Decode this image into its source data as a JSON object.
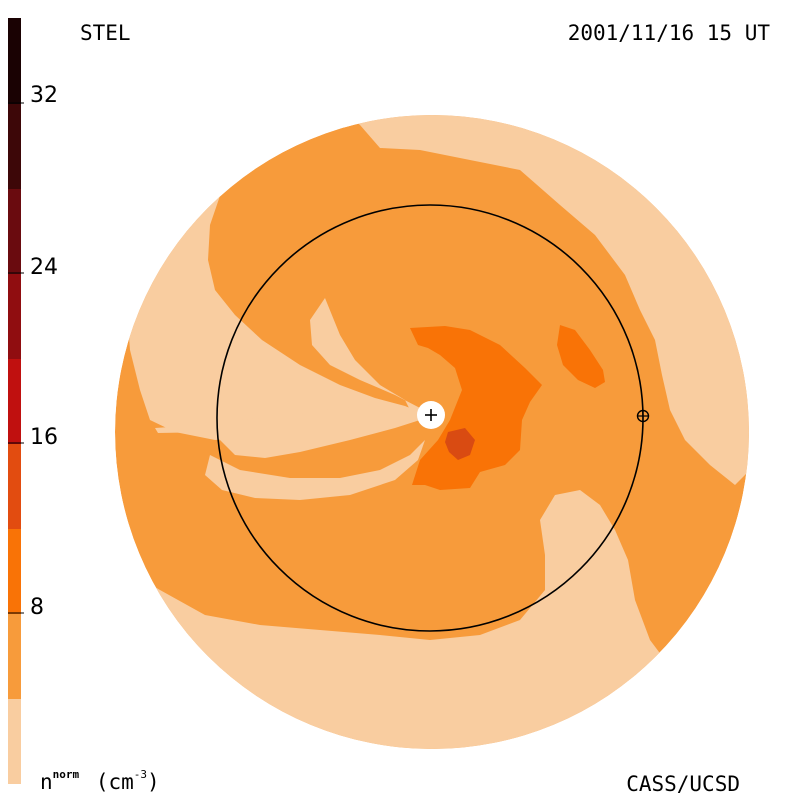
{
  "header": {
    "observatory": "STEL",
    "datetime": "2001/11/16 15 UT"
  },
  "footer": {
    "unit_base": "n",
    "unit_sup": "norm",
    "unit_paren": "(cm",
    "unit_exp": "-3",
    "unit_close": ")",
    "credit": "CASS/UCSD"
  },
  "colorbar": {
    "ticks": [
      "32",
      "24",
      "16",
      "8"
    ],
    "tick_values": [
      32,
      24,
      16,
      8
    ],
    "range": [
      0,
      36
    ],
    "colors": [
      "#f9cda0",
      "#f79b3b",
      "#f97306",
      "#e24c10",
      "#c0100f",
      "#900d10",
      "#6a0b0f",
      "#3d0708",
      "#1a0203"
    ]
  },
  "map_colors": {
    "level0": "#f9cda0",
    "level1": "#f79b3b",
    "level2": "#f97306",
    "level3": "#d94b12"
  },
  "markers": {
    "sun_symbol": "+",
    "earth_symbol": "⊕"
  }
}
